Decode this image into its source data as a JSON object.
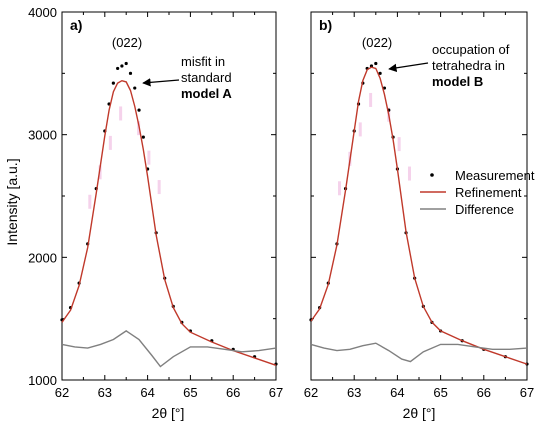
{
  "figure": {
    "y_axis_label": "Intensity [a.u.]",
    "x_axis_label": "2θ [°]"
  },
  "legend": {
    "items": [
      {
        "label": "Measurement",
        "symbol": "dot",
        "color": "#000000"
      },
      {
        "label": "Refinement",
        "symbol": "line",
        "color": "#c0392b"
      },
      {
        "label": "Difference",
        "symbol": "line",
        "color": "#808080"
      }
    ]
  },
  "colors": {
    "measurement": "#000000",
    "refinement": "#c0392b",
    "difference": "#808080",
    "peak_envelope": "#f2c7e6"
  },
  "chart_data": [
    {
      "type": "scatter",
      "panel_label": "a)",
      "peak_label": "(022)",
      "annotation": {
        "lines": [
          "misfit in",
          "standard"
        ],
        "bold_line": "model A"
      },
      "xlim": [
        62,
        67
      ],
      "ylim": [
        1000,
        4000
      ],
      "x_ticks": [
        62,
        63,
        64,
        65,
        66,
        67
      ],
      "y_ticks": [
        1000,
        2000,
        3000,
        4000
      ],
      "refinement_peak": {
        "center": 63.52,
        "height": 3430,
        "fwhm": 0.82
      },
      "series": [
        {
          "name": "Measurement",
          "kind": "points",
          "color": "#000000",
          "x": [
            62.0,
            62.2,
            62.4,
            62.6,
            62.8,
            63.0,
            63.1,
            63.2,
            63.3,
            63.4,
            63.5,
            63.6,
            63.7,
            63.8,
            63.9,
            64.0,
            64.2,
            64.4,
            64.6,
            64.8,
            65.0,
            65.5,
            66.0,
            66.5,
            67.0
          ],
          "y": [
            1490,
            1590,
            1790,
            2110,
            2560,
            3030,
            3250,
            3420,
            3540,
            3560,
            3580,
            3500,
            3380,
            3200,
            2980,
            2720,
            2200,
            1830,
            1600,
            1470,
            1400,
            1320,
            1250,
            1190,
            1130
          ]
        },
        {
          "name": "Refinement",
          "kind": "line",
          "color": "#c0392b",
          "x": [
            62.0,
            62.2,
            62.4,
            62.6,
            62.8,
            63.0,
            63.1,
            63.2,
            63.3,
            63.4,
            63.5,
            63.6,
            63.7,
            63.8,
            63.9,
            64.0,
            64.2,
            64.4,
            64.6,
            64.8,
            65.0,
            65.5,
            66.0,
            66.5,
            67.0
          ],
          "y": [
            1470,
            1570,
            1770,
            2080,
            2520,
            2990,
            3200,
            3350,
            3420,
            3440,
            3430,
            3360,
            3230,
            3070,
            2880,
            2660,
            2180,
            1820,
            1590,
            1460,
            1390,
            1310,
            1240,
            1180,
            1120
          ]
        },
        {
          "name": "Difference",
          "kind": "line",
          "color": "#808080",
          "x": [
            62.0,
            62.3,
            62.6,
            62.9,
            63.2,
            63.5,
            63.8,
            64.1,
            64.3,
            64.6,
            65.0,
            65.4,
            65.8,
            66.2,
            66.6,
            67.0
          ],
          "y": [
            1290,
            1270,
            1260,
            1290,
            1330,
            1400,
            1330,
            1200,
            1110,
            1190,
            1270,
            1270,
            1250,
            1230,
            1240,
            1260
          ]
        }
      ]
    },
    {
      "type": "scatter",
      "panel_label": "b)",
      "peak_label": "(022)",
      "annotation": {
        "lines": [
          "occupation of",
          "tetrahedra in"
        ],
        "bold_line": "model B"
      },
      "xlim": [
        62,
        67
      ],
      "ylim": [
        1000,
        4000
      ],
      "x_ticks": [
        62,
        63,
        64,
        65,
        66,
        67
      ],
      "y_ticks": [
        1000,
        2000,
        3000,
        4000
      ],
      "refinement_peak": {
        "center": 63.53,
        "height": 3540,
        "fwhm": 0.8
      },
      "series": [
        {
          "name": "Measurement",
          "kind": "points",
          "color": "#000000",
          "x": [
            62.0,
            62.2,
            62.4,
            62.6,
            62.8,
            63.0,
            63.1,
            63.2,
            63.3,
            63.4,
            63.5,
            63.6,
            63.7,
            63.8,
            63.9,
            64.0,
            64.2,
            64.4,
            64.6,
            64.8,
            65.0,
            65.5,
            66.0,
            66.5,
            67.0
          ],
          "y": [
            1490,
            1590,
            1790,
            2110,
            2560,
            3030,
            3250,
            3420,
            3540,
            3560,
            3580,
            3500,
            3380,
            3200,
            2980,
            2720,
            2200,
            1830,
            1600,
            1470,
            1400,
            1320,
            1250,
            1190,
            1130
          ]
        },
        {
          "name": "Refinement",
          "kind": "line",
          "color": "#c0392b",
          "x": [
            62.0,
            62.2,
            62.4,
            62.6,
            62.8,
            63.0,
            63.1,
            63.2,
            63.3,
            63.4,
            63.5,
            63.6,
            63.7,
            63.8,
            63.9,
            64.0,
            64.2,
            64.4,
            64.6,
            64.8,
            65.0,
            65.5,
            66.0,
            66.5,
            67.0
          ],
          "y": [
            1480,
            1580,
            1780,
            2100,
            2550,
            3030,
            3270,
            3440,
            3530,
            3550,
            3540,
            3460,
            3330,
            3160,
            2960,
            2720,
            2210,
            1830,
            1600,
            1470,
            1400,
            1320,
            1250,
            1190,
            1130
          ]
        },
        {
          "name": "Difference",
          "kind": "line",
          "color": "#808080",
          "x": [
            62.0,
            62.3,
            62.6,
            62.9,
            63.2,
            63.5,
            63.8,
            64.1,
            64.3,
            64.6,
            65.0,
            65.4,
            65.8,
            66.2,
            66.6,
            67.0
          ],
          "y": [
            1290,
            1260,
            1240,
            1250,
            1280,
            1300,
            1240,
            1170,
            1150,
            1230,
            1290,
            1290,
            1270,
            1250,
            1250,
            1260
          ]
        }
      ]
    }
  ]
}
